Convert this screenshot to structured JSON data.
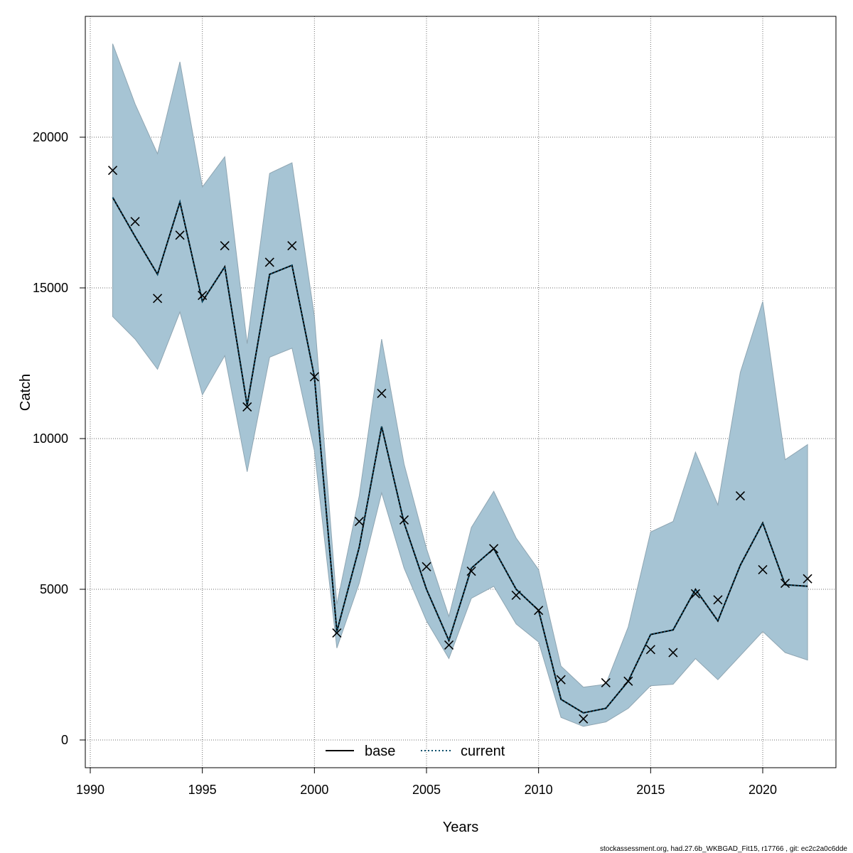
{
  "chart_data": {
    "type": "line",
    "xlabel": "Years",
    "ylabel": "Catch",
    "xlim": [
      1990,
      2022
    ],
    "ylim": [
      0,
      23000
    ],
    "x_ticks": [
      1990,
      1995,
      2000,
      2005,
      2010,
      2015,
      2020
    ],
    "y_ticks": [
      0,
      5000,
      10000,
      15000,
      20000
    ],
    "grid": true,
    "legend_placement": "bottom",
    "legend": [
      {
        "name": "base",
        "style": "solid",
        "color": "#000000"
      },
      {
        "name": "current",
        "style": "dotted",
        "color": "#000000"
      }
    ],
    "colors": {
      "band": "#a6c4d4",
      "band_edge": "#8fa6b3",
      "grid": "#6e6e6e"
    },
    "x": [
      1991,
      1992,
      1993,
      1994,
      1995,
      1996,
      1997,
      1998,
      1999,
      2000,
      2001,
      2002,
      2003,
      2004,
      2005,
      2006,
      2007,
      2008,
      2009,
      2010,
      2011,
      2012,
      2013,
      2014,
      2015,
      2016,
      2017,
      2018,
      2019,
      2020,
      2021,
      2022
    ],
    "series": [
      {
        "name": "base",
        "values": [
          18000,
          16700,
          15450,
          17850,
          14550,
          15700,
          11100,
          15450,
          15750,
          12050,
          3600,
          6400,
          10400,
          7200,
          5000,
          3300,
          5700,
          6350,
          5000,
          4300,
          1350,
          900,
          1050,
          1950,
          3500,
          3650,
          5000,
          3950,
          5800,
          7200,
          5150,
          5100
        ]
      },
      {
        "name": "current",
        "values": [
          18000,
          16700,
          15450,
          17850,
          14550,
          15700,
          11100,
          15450,
          15750,
          12050,
          3600,
          6400,
          10400,
          7200,
          5000,
          3300,
          5700,
          6350,
          5000,
          4300,
          1350,
          900,
          1050,
          1950,
          3500,
          3650,
          5000,
          3950,
          5800,
          7200,
          5150,
          5100
        ]
      },
      {
        "name": "band_upper",
        "values": [
          23100,
          21100,
          19450,
          22500,
          18350,
          19350,
          13150,
          18800,
          19150,
          14050,
          4500,
          8100,
          13300,
          9150,
          6350,
          4100,
          7050,
          8250,
          6700,
          5650,
          2450,
          1750,
          1850,
          3750,
          6900,
          7250,
          9550,
          7800,
          12200,
          14550,
          9300,
          9800
        ]
      },
      {
        "name": "band_lower",
        "values": [
          14050,
          13300,
          12300,
          14200,
          11450,
          12750,
          8900,
          12700,
          13000,
          9600,
          3050,
          5200,
          8200,
          5700,
          3950,
          2700,
          4700,
          5100,
          3850,
          3250,
          750,
          450,
          600,
          1050,
          1800,
          1850,
          2700,
          2000,
          2800,
          3600,
          2900,
          2650
        ]
      },
      {
        "name": "observed",
        "values": [
          18900,
          17200,
          14650,
          16750,
          14750,
          16400,
          11050,
          15850,
          16400,
          12050,
          3550,
          7250,
          11500,
          7300,
          5750,
          3150,
          5600,
          6350,
          4800,
          4300,
          2000,
          700,
          1900,
          1950,
          3000,
          2900,
          4850,
          4650,
          8100,
          5650,
          5200,
          5350
        ]
      }
    ]
  },
  "footer": "stockassessment.org, had.27.6b_WKBGAD_Fit15, r17766 , git: ec2c2a0c6dde"
}
